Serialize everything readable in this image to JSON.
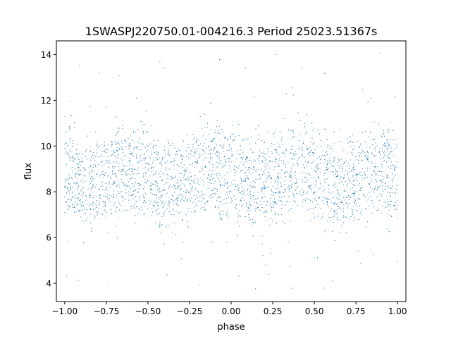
{
  "chart_data": {
    "type": "scatter",
    "title": "1SWASPJ220750.01-004216.3 Period 25023.51367s",
    "xlabel": "phase",
    "ylabel": "flux",
    "xlim": [
      -1.05,
      1.05
    ],
    "ylim": [
      3.2,
      14.6
    ],
    "xticks": [
      -1.0,
      -0.75,
      -0.5,
      -0.25,
      0.0,
      0.25,
      0.5,
      0.75,
      1.0
    ],
    "xtick_labels": [
      "−1.00",
      "−0.75",
      "−0.50",
      "−0.25",
      "0.00",
      "0.25",
      "0.50",
      "0.75",
      "1.00"
    ],
    "yticks": [
      4,
      6,
      8,
      10,
      12,
      14
    ],
    "ytick_labels": [
      "4",
      "6",
      "8",
      "10",
      "12",
      "14"
    ],
    "grid": false,
    "legend": "none",
    "marker_color": "#1f77b4",
    "series": [
      {
        "x": [
          -1.0,
          -0.95,
          -0.9,
          -0.85,
          -0.8,
          -0.75,
          -0.7,
          -0.65,
          -0.6,
          -0.55,
          -0.5,
          -0.45,
          -0.4,
          -0.35,
          -0.3,
          -0.25,
          -0.2,
          -0.15,
          -0.1,
          -0.05,
          0.0,
          0.05,
          0.1,
          0.15,
          0.2,
          0.25,
          0.3,
          0.35,
          0.4,
          0.45,
          0.5,
          0.55,
          0.6,
          0.65,
          0.7,
          0.75,
          0.8,
          0.85,
          0.9,
          0.95,
          1.0
        ],
        "y_upper": [
          9.6,
          9.6,
          9.2,
          9.1,
          9.2,
          9.4,
          9.7,
          9.8,
          9.8,
          9.7,
          9.5,
          9.3,
          9.1,
          9.0,
          9.1,
          9.3,
          9.6,
          9.8,
          9.8,
          9.7,
          9.5,
          9.3,
          9.2,
          9.1,
          9.1,
          9.3,
          9.6,
          9.8,
          9.8,
          9.7,
          9.5,
          9.3,
          9.1,
          9.0,
          9.1,
          9.3,
          9.5,
          9.7,
          9.7,
          9.6,
          9.5
        ],
        "y_lower": [
          8.0,
          7.8,
          7.7,
          7.6,
          7.6,
          7.8,
          8.0,
          8.3,
          8.2,
          8.0,
          7.9,
          7.7,
          7.5,
          7.5,
          7.6,
          7.8,
          8.0,
          8.3,
          8.3,
          8.1,
          7.9,
          7.7,
          7.6,
          7.6,
          7.6,
          7.8,
          8.0,
          8.3,
          8.3,
          8.1,
          7.9,
          7.7,
          7.6,
          7.5,
          7.6,
          7.8,
          8.0,
          8.3,
          8.2,
          8.0,
          7.9
        ],
        "scatter_sd": 0.6,
        "outlier_range": [
          3.6,
          14.1
        ]
      }
    ]
  }
}
